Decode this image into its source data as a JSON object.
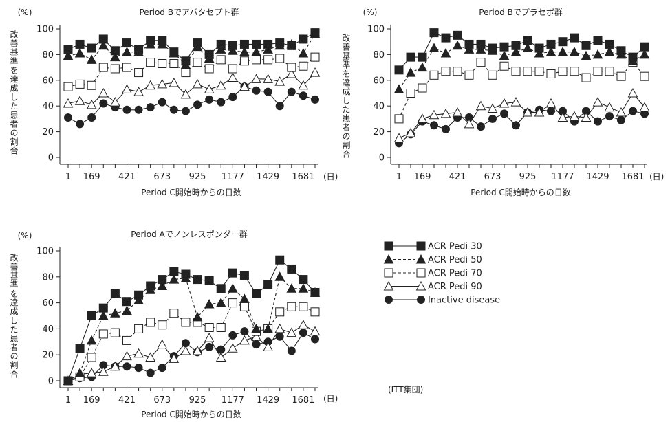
{
  "figure": {
    "legend": [
      {
        "label": "ACR Pedi 30",
        "marker": "square-filled",
        "dash": "solid"
      },
      {
        "label": "ACR Pedi 50",
        "marker": "triangle-filled",
        "dash": "dashed"
      },
      {
        "label": "ACR Pedi 70",
        "marker": "square-open",
        "dash": "dashed"
      },
      {
        "label": "ACR Pedi 90",
        "marker": "triangle-open",
        "dash": "solid"
      },
      {
        "label": "Inactive disease",
        "marker": "circle-filled",
        "dash": "solid"
      }
    ],
    "footnote": "(ITT集団)",
    "colors": {
      "line": "#222222",
      "open_fill": "#ffffff"
    }
  },
  "chart_data": [
    {
      "type": "line",
      "title": "Period Bでアバタセプト群",
      "ylabel": "改善基準を達成した患者の割合",
      "yunit": "(%)",
      "xlabel": "Period C開始時からの日数",
      "xunit": "(日)",
      "ylim": [
        0,
        100
      ],
      "yticks": [
        0,
        20,
        40,
        60,
        80,
        100
      ],
      "x": [
        1,
        85,
        169,
        253,
        337,
        421,
        505,
        589,
        673,
        757,
        841,
        925,
        1009,
        1093,
        1177,
        1261,
        1345,
        1429,
        1513,
        1597,
        1681,
        1765
      ],
      "xticks": [
        1,
        169,
        421,
        673,
        925,
        1177,
        1429,
        1681
      ],
      "series": [
        {
          "name": "ACR Pedi 30",
          "values": [
            84,
            88,
            85,
            92,
            83,
            89,
            84,
            91,
            91,
            82,
            75,
            89,
            80,
            88,
            87,
            88,
            88,
            88,
            89,
            87,
            92,
            97
          ]
        },
        {
          "name": "ACR Pedi 50",
          "values": [
            79,
            81,
            76,
            87,
            78,
            82,
            82,
            88,
            88,
            81,
            72,
            86,
            77,
            84,
            83,
            82,
            82,
            84,
            87,
            88,
            81,
            96
          ]
        },
        {
          "name": "ACR Pedi 70",
          "values": [
            55,
            57,
            56,
            70,
            69,
            70,
            66,
            74,
            73,
            73,
            66,
            74,
            69,
            76,
            69,
            75,
            76,
            76,
            77,
            70,
            71,
            78
          ]
        },
        {
          "name": "ACR Pedi 90",
          "values": [
            42,
            44,
            41,
            50,
            43,
            53,
            51,
            56,
            57,
            58,
            49,
            57,
            53,
            56,
            62,
            55,
            61,
            61,
            59,
            65,
            56,
            66
          ]
        },
        {
          "name": "Inactive disease",
          "values": [
            31,
            26,
            31,
            42,
            39,
            37,
            37,
            39,
            43,
            37,
            36,
            41,
            45,
            43,
            47,
            55,
            52,
            51,
            40,
            51,
            48,
            45
          ]
        }
      ]
    },
    {
      "type": "line",
      "title": "Period Bでプラセボ群",
      "ylabel": "改善基準を達成した患者の割合",
      "yunit": "(%)",
      "xlabel": "Period C開始時からの日数",
      "xunit": "(日)",
      "ylim": [
        0,
        100
      ],
      "yticks": [
        0,
        20,
        40,
        60,
        80,
        100
      ],
      "x": [
        1,
        85,
        169,
        253,
        337,
        421,
        505,
        589,
        673,
        757,
        841,
        925,
        1009,
        1093,
        1177,
        1261,
        1345,
        1429,
        1513,
        1597,
        1681,
        1765
      ],
      "xticks": [
        1,
        169,
        421,
        673,
        925,
        1177,
        1429,
        1681
      ],
      "series": [
        {
          "name": "ACR Pedi 30",
          "values": [
            68,
            78,
            78,
            97,
            93,
            95,
            88,
            88,
            85,
            86,
            87,
            91,
            85,
            88,
            90,
            93,
            87,
            91,
            88,
            83,
            78,
            86
          ]
        },
        {
          "name": "ACR Pedi 50",
          "values": [
            53,
            66,
            70,
            85,
            81,
            87,
            84,
            84,
            83,
            79,
            82,
            85,
            81,
            82,
            82,
            82,
            79,
            80,
            82,
            80,
            75,
            80
          ]
        },
        {
          "name": "ACR Pedi 70",
          "values": [
            30,
            50,
            54,
            64,
            67,
            67,
            64,
            74,
            64,
            71,
            67,
            67,
            67,
            65,
            67,
            67,
            62,
            67,
            67,
            63,
            74,
            63
          ]
        },
        {
          "name": "ACR Pedi 90",
          "values": [
            15,
            19,
            30,
            33,
            34,
            35,
            26,
            40,
            38,
            42,
            43,
            35,
            35,
            42,
            31,
            32,
            31,
            43,
            39,
            35,
            50,
            39
          ]
        },
        {
          "name": "Inactive disease",
          "values": [
            11,
            18,
            28,
            25,
            22,
            31,
            31,
            24,
            30,
            34,
            25,
            35,
            37,
            36,
            36,
            28,
            36,
            28,
            32,
            29,
            36,
            34
          ]
        }
      ]
    },
    {
      "type": "line",
      "title": "Period Aでノンレスポンダー群",
      "ylabel": "改善基準を達成した患者の割合",
      "yunit": "(%)",
      "xlabel": "Period C開始時からの日数",
      "xunit": "(日)",
      "ylim": [
        0,
        100
      ],
      "yticks": [
        0,
        20,
        40,
        60,
        80,
        100
      ],
      "x": [
        1,
        85,
        169,
        253,
        337,
        421,
        505,
        589,
        673,
        757,
        841,
        925,
        1009,
        1093,
        1177,
        1261,
        1345,
        1429,
        1513,
        1597,
        1681,
        1765
      ],
      "xticks": [
        1,
        169,
        421,
        673,
        925,
        1177,
        1429,
        1681
      ],
      "series": [
        {
          "name": "ACR Pedi 30",
          "values": [
            0,
            25,
            50,
            56,
            67,
            61,
            66,
            73,
            78,
            84,
            82,
            78,
            77,
            71,
            83,
            81,
            67,
            74,
            93,
            86,
            78,
            68
          ]
        },
        {
          "name": "ACR Pedi 50",
          "values": [
            0,
            6,
            31,
            50,
            52,
            54,
            62,
            70,
            73,
            78,
            79,
            49,
            59,
            60,
            71,
            63,
            40,
            40,
            80,
            71,
            71,
            68
          ]
        },
        {
          "name": "ACR Pedi 70",
          "values": [
            0,
            3,
            18,
            36,
            37,
            31,
            40,
            45,
            43,
            52,
            45,
            45,
            41,
            41,
            60,
            57,
            38,
            40,
            53,
            57,
            57,
            53
          ]
        },
        {
          "name": "ACR Pedi 90",
          "values": [
            0,
            5,
            6,
            7,
            11,
            19,
            21,
            18,
            28,
            17,
            23,
            23,
            33,
            18,
            25,
            31,
            34,
            26,
            40,
            37,
            43,
            38
          ]
        },
        {
          "name": "Inactive disease",
          "values": [
            0,
            2,
            3,
            12,
            11,
            11,
            10,
            6,
            10,
            19,
            29,
            22,
            26,
            24,
            35,
            38,
            28,
            30,
            34,
            23,
            37,
            32
          ]
        }
      ]
    }
  ]
}
